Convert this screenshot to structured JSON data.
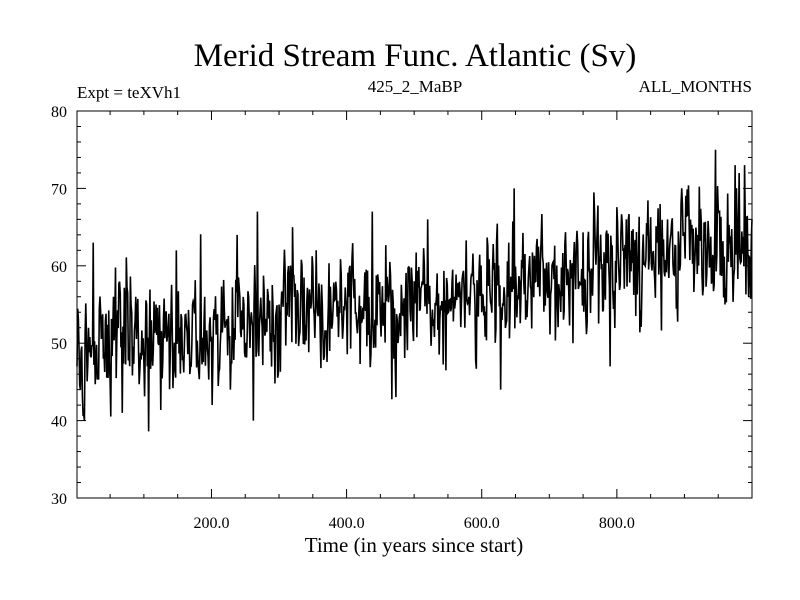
{
  "chart_data": {
    "type": "line",
    "title": "Merid Stream Func. Atlantic (Sv)",
    "subtitle_left": "Expt = teXVh1",
    "subtitle_center": "425_2_MaBP",
    "subtitle_right": "ALL_MONTHS",
    "xlabel": "Time (in years since start)",
    "ylabel": "",
    "xlim": [
      1,
      1000
    ],
    "ylim": [
      30,
      80
    ],
    "x_ticks": [
      200,
      400,
      600,
      800
    ],
    "x_tick_labels": [
      "200.0",
      "400.0",
      "600.0",
      "800.0"
    ],
    "y_ticks": [
      30,
      40,
      50,
      60,
      70,
      80
    ],
    "y_tick_labels": [
      "30",
      "40",
      "50",
      "60",
      "70",
      "80"
    ],
    "grid": false,
    "series": [
      {
        "name": "Merid Stream Func. Atlantic",
        "trend_start": 50.5,
        "trend_end": 63,
        "noise_amplitude": 4,
        "anchors": [
          [
            1,
            47
          ],
          [
            6,
            44
          ],
          [
            12,
            40
          ],
          [
            18,
            52
          ],
          [
            25,
            63
          ],
          [
            40,
            48
          ],
          [
            55,
            56
          ],
          [
            68,
            41
          ],
          [
            88,
            56
          ],
          [
            105,
            47
          ],
          [
            118,
            55
          ],
          [
            135,
            51
          ],
          [
            148,
            62
          ],
          [
            160,
            50
          ],
          [
            172,
            55
          ],
          [
            180,
            48
          ],
          [
            190,
            56
          ],
          [
            205,
            53
          ],
          [
            220,
            52
          ],
          [
            228,
            44
          ],
          [
            238,
            64
          ],
          [
            255,
            56
          ],
          [
            262,
            40
          ],
          [
            268,
            67
          ],
          [
            300,
            55
          ],
          [
            320,
            65
          ],
          [
            355,
            62
          ],
          [
            375,
            49
          ],
          [
            405,
            60
          ],
          [
            438,
            67
          ],
          [
            470,
            48
          ],
          [
            500,
            58
          ],
          [
            520,
            66
          ],
          [
            545,
            54
          ],
          [
            575,
            52
          ],
          [
            600,
            54
          ],
          [
            628,
            44
          ],
          [
            648,
            70
          ],
          [
            680,
            58
          ],
          [
            700,
            57
          ],
          [
            735,
            50
          ],
          [
            760,
            59
          ],
          [
            790,
            47
          ],
          [
            820,
            62
          ],
          [
            842,
            60
          ],
          [
            860,
            63
          ],
          [
            875,
            66
          ],
          [
            895,
            68
          ],
          [
            920,
            64
          ],
          [
            946,
            75
          ],
          [
            960,
            55
          ],
          [
            975,
            73
          ],
          [
            989,
            73
          ],
          [
            995,
            56
          ],
          [
            1000,
            66
          ]
        ],
        "seed": 1234
      }
    ]
  }
}
